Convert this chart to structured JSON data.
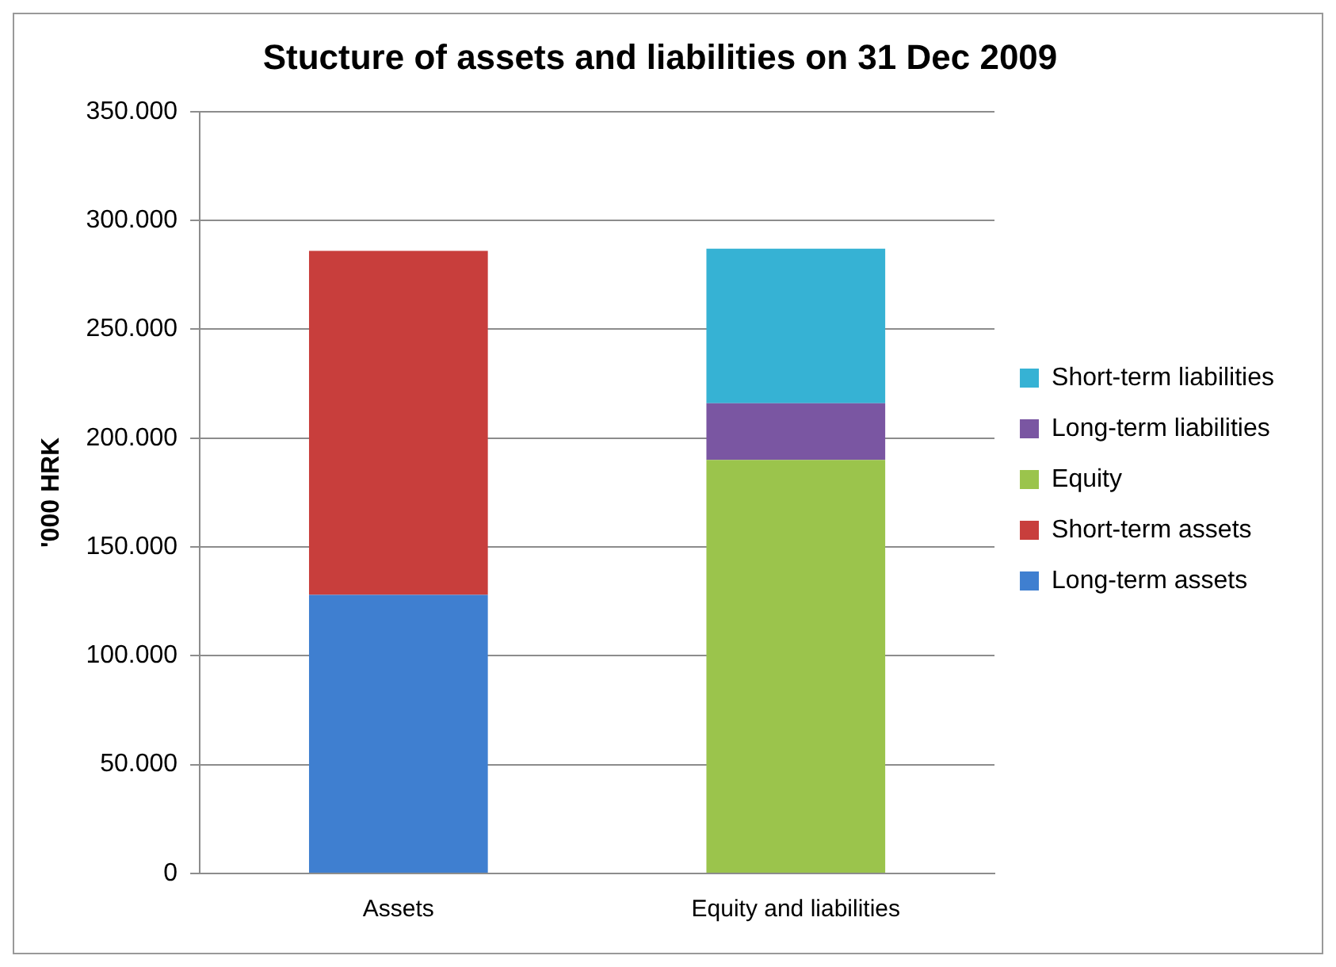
{
  "chart_data": {
    "type": "bar",
    "title": "Stucture of assets and liabilities on 31 Dec 2009",
    "ylabel": "'000 HRK",
    "categories": [
      "Assets",
      "Equity and liabilities"
    ],
    "series": [
      {
        "name": "Long-term assets",
        "color": "#3f7fd0",
        "values": [
          128000,
          null
        ]
      },
      {
        "name": "Short-term assets",
        "color": "#c83e3c",
        "values": [
          158000,
          null
        ]
      },
      {
        "name": "Equity",
        "color": "#9bc44c",
        "values": [
          null,
          190000
        ]
      },
      {
        "name": "Long-term liabilities",
        "color": "#7a56a2",
        "values": [
          null,
          26000
        ]
      },
      {
        "name": "Short-term liabilities",
        "color": "#36b2d4",
        "values": [
          null,
          71000
        ]
      }
    ],
    "stacked": true,
    "ylim": [
      0,
      350000
    ],
    "yticks": [
      {
        "value": 0,
        "label": "0"
      },
      {
        "value": 50000,
        "label": "50.000"
      },
      {
        "value": 100000,
        "label": "100.000"
      },
      {
        "value": 150000,
        "label": "150.000"
      },
      {
        "value": 200000,
        "label": "200.000"
      },
      {
        "value": 250000,
        "label": "250.000"
      },
      {
        "value": 300000,
        "label": "300.000"
      },
      {
        "value": 350000,
        "label": "350.000"
      }
    ],
    "grid": "y",
    "legend": "right"
  }
}
